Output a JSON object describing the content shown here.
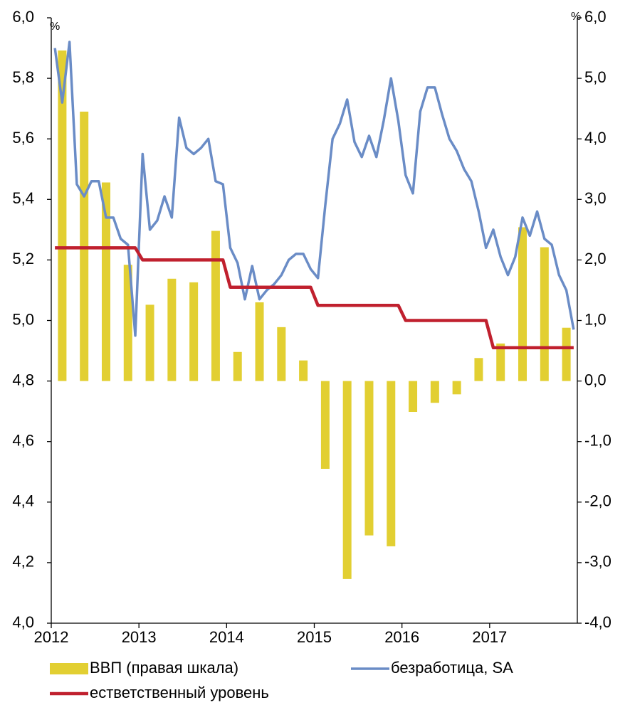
{
  "chart_data": {
    "type": "combo",
    "y_label": "%",
    "y2_label": "%",
    "categories": [
      "2012",
      null,
      null,
      null,
      null,
      null,
      null,
      null,
      null,
      null,
      null,
      null,
      "2013",
      null,
      null,
      null,
      null,
      null,
      null,
      null,
      null,
      null,
      null,
      null,
      "2014",
      null,
      null,
      null,
      null,
      null,
      null,
      null,
      null,
      null,
      null,
      null,
      "2015",
      null,
      null,
      null,
      null,
      null,
      null,
      null,
      null,
      null,
      null,
      null,
      "2016",
      null,
      null,
      null,
      null,
      null,
      null,
      null,
      null,
      null,
      null,
      null,
      "2017",
      null,
      null,
      null,
      null,
      null,
      null,
      null,
      null,
      null,
      null,
      null
    ],
    "ylim": [
      4.0,
      6.0
    ],
    "yticks": [
      {
        "value": 4.0,
        "label": "4,0"
      },
      {
        "value": 4.2,
        "label": "4,2"
      },
      {
        "value": 4.4,
        "label": "4,4"
      },
      {
        "value": 4.6,
        "label": "4,6"
      },
      {
        "value": 4.8,
        "label": "4,8"
      },
      {
        "value": 5.0,
        "label": "5,0"
      },
      {
        "value": 5.2,
        "label": "5,2"
      },
      {
        "value": 5.4,
        "label": "5,4"
      },
      {
        "value": 5.6,
        "label": "5,6"
      },
      {
        "value": 5.8,
        "label": "5,8"
      },
      {
        "value": 6.0,
        "label": "6,0"
      }
    ],
    "y2lim": [
      -4.0,
      6.0
    ],
    "y2ticks": [
      {
        "value": -4,
        "label": "-4,0"
      },
      {
        "value": -3,
        "label": "-3,0"
      },
      {
        "value": -2,
        "label": "-2,0"
      },
      {
        "value": -1,
        "label": "-1,0"
      },
      {
        "value": 0,
        "label": "0,0"
      },
      {
        "value": 1,
        "label": "1,0"
      },
      {
        "value": 2,
        "label": "2,0"
      },
      {
        "value": 3,
        "label": "3,0"
      },
      {
        "value": 4,
        "label": "4,0"
      },
      {
        "value": 5,
        "label": "5,0"
      },
      {
        "value": 6,
        "label": "6,0"
      }
    ],
    "grid": false,
    "series": [
      {
        "name": "ВВП (правая шкала)",
        "type": "bar",
        "axis": "y2",
        "color": "#e2cf32",
        "values": [
          null,
          5.46,
          null,
          null,
          4.45,
          null,
          null,
          3.28,
          null,
          null,
          1.92,
          null,
          null,
          1.26,
          null,
          null,
          1.69,
          null,
          null,
          1.63,
          null,
          null,
          2.48,
          null,
          null,
          0.48,
          null,
          null,
          1.3,
          null,
          null,
          0.89,
          null,
          null,
          0.34,
          null,
          null,
          -1.45,
          null,
          null,
          -3.27,
          null,
          null,
          -2.55,
          null,
          null,
          -2.73,
          null,
          null,
          -0.51,
          null,
          null,
          -0.36,
          null,
          null,
          -0.22,
          null,
          null,
          0.38,
          null,
          null,
          0.62,
          null,
          null,
          2.54,
          null,
          null,
          2.21,
          null,
          null,
          0.88,
          null
        ]
      },
      {
        "name": "безработица, SA",
        "type": "line",
        "color": "#6a8cc6",
        "values": [
          5.9,
          5.72,
          5.92,
          5.45,
          5.41,
          5.46,
          5.46,
          5.34,
          5.34,
          5.27,
          5.25,
          4.95,
          5.55,
          5.3,
          5.33,
          5.41,
          5.34,
          5.67,
          5.57,
          5.55,
          5.57,
          5.6,
          5.46,
          5.45,
          5.24,
          5.19,
          5.07,
          5.18,
          5.07,
          5.1,
          5.12,
          5.15,
          5.2,
          5.22,
          5.22,
          5.17,
          5.14,
          5.38,
          5.6,
          5.65,
          5.73,
          5.59,
          5.54,
          5.61,
          5.54,
          5.66,
          5.8,
          5.66,
          5.48,
          5.42,
          5.69,
          5.77,
          5.77,
          5.68,
          5.6,
          5.56,
          5.5,
          5.46,
          5.36,
          5.24,
          5.3,
          5.21,
          5.15,
          5.21,
          5.34,
          5.28,
          5.36,
          5.27,
          5.25,
          5.15,
          5.1,
          4.97
        ]
      },
      {
        "name": "естветственный уровень",
        "type": "line",
        "color": "#c0202e",
        "values": [
          5.24,
          5.24,
          5.24,
          5.24,
          5.24,
          5.24,
          5.24,
          5.24,
          5.24,
          5.24,
          5.24,
          5.24,
          5.2,
          5.2,
          5.2,
          5.2,
          5.2,
          5.2,
          5.2,
          5.2,
          5.2,
          5.2,
          5.2,
          5.2,
          5.11,
          5.11,
          5.11,
          5.11,
          5.11,
          5.11,
          5.11,
          5.11,
          5.11,
          5.11,
          5.11,
          5.11,
          5.05,
          5.05,
          5.05,
          5.05,
          5.05,
          5.05,
          5.05,
          5.05,
          5.05,
          5.05,
          5.05,
          5.05,
          5.0,
          5.0,
          5.0,
          5.0,
          5.0,
          5.0,
          5.0,
          5.0,
          5.0,
          5.0,
          5.0,
          5.0,
          4.91,
          4.91,
          4.91,
          4.91,
          4.91,
          4.91,
          4.91,
          4.91,
          4.91,
          4.91,
          4.91,
          4.91
        ]
      }
    ]
  }
}
